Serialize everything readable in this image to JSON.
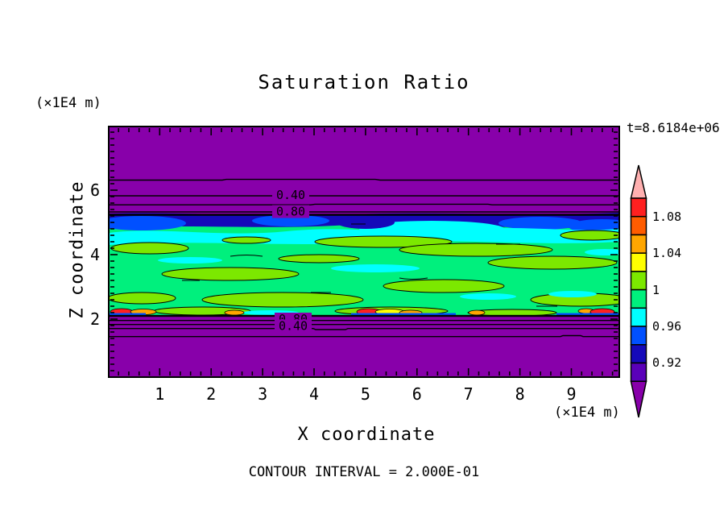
{
  "title": "Saturation Ratio",
  "timestamp": "t=8.6184e+06",
  "axis": {
    "x_label": "X coordinate",
    "x_unit": "(×1E4 m)",
    "y_label": "Z coordinate",
    "y_unit": "(×1E4 m)",
    "x_ticks": [
      "1",
      "2",
      "3",
      "4",
      "5",
      "6",
      "7",
      "8",
      "9"
    ],
    "y_ticks": [
      "6",
      "4",
      "2"
    ]
  },
  "contour_note": "CONTOUR INTERVAL = 2.000E-01",
  "contour_labels": {
    "top": [
      "0.40",
      "0.80"
    ],
    "bottom": [
      "0.80",
      "0.40"
    ]
  },
  "colorbar": {
    "labels": [
      "1.08",
      "1.04",
      "1",
      "0.96",
      "0.92"
    ],
    "segment_colors": [
      "#ff2020",
      "#ff5c00",
      "#ffa600",
      "#ffff00",
      "#7ce800",
      "#00f07d",
      "#00ffff",
      "#0050ff",
      "#1509b9",
      "#5a00b9"
    ],
    "over_color": "#ffb0b0",
    "under_color": "#8800aa"
  },
  "palette": {
    "purple": "#8800aa",
    "navy": "#1509b9",
    "indigo": "#5a00b9",
    "blue": "#0050ff",
    "cyan": "#00ffff",
    "spring": "#00f07d",
    "chartreuse": "#7ce800",
    "yellow": "#ffff00",
    "orange": "#ffa600",
    "orangered": "#ff5c00",
    "red": "#ff2020",
    "pink": "#ffb0b0",
    "ink": "#000000"
  },
  "chart_data": {
    "type": "heatmap",
    "title": "Saturation Ratio",
    "xlabel": "X coordinate (×1E4 m)",
    "ylabel": "Z coordinate (×1E4 m)",
    "xlim": [
      0,
      9.9
    ],
    "ylim": [
      0.1,
      7.9
    ],
    "x_ticks": [
      1,
      2,
      3,
      4,
      5,
      6,
      7,
      8,
      9
    ],
    "y_ticks": [
      2,
      4,
      6
    ],
    "time_annotation": "t=8.6184e+06",
    "contour_interval": 0.2,
    "labeled_contour_values": [
      0.4,
      0.8
    ],
    "colorbar_levels": [
      0.9,
      0.92,
      0.94,
      0.96,
      0.98,
      1.0,
      1.02,
      1.04,
      1.06,
      1.08,
      1.1
    ],
    "colorbar_tick_labels": [
      1.08,
      1.04,
      1,
      0.96,
      0.92
    ],
    "field_layers": [
      {
        "z_range": [
          5.4,
          7.9
        ],
        "saturation_ratio": "< 0.2 (purple); transition contours 0.8, 0.6, 0.4, 0.2 stacked between z≈5.3 and z≈6.3"
      },
      {
        "z_range": [
          2.0,
          5.3
        ],
        "saturation_ratio": "saturated band mostly 0.96–1.00 (spring green) with elongated 1.00–1.02 lenses (chartreuse), 0.94–0.96 cyan streaks, 0.90–0.94 blue/navy layer along the top edge, and local 1.04–1.10 (orange/red/yellow) spots along the bottom edge near z≈2.05"
      },
      {
        "z_range": [
          0.1,
          1.9
        ],
        "saturation_ratio": "< 0.2 (purple); transition contours 0.8, 0.6, 0.4, 0.2 stacked between z≈1.95 and z≈1.4"
      }
    ],
    "legend_position": "right colorbar with over/under arrow caps"
  }
}
